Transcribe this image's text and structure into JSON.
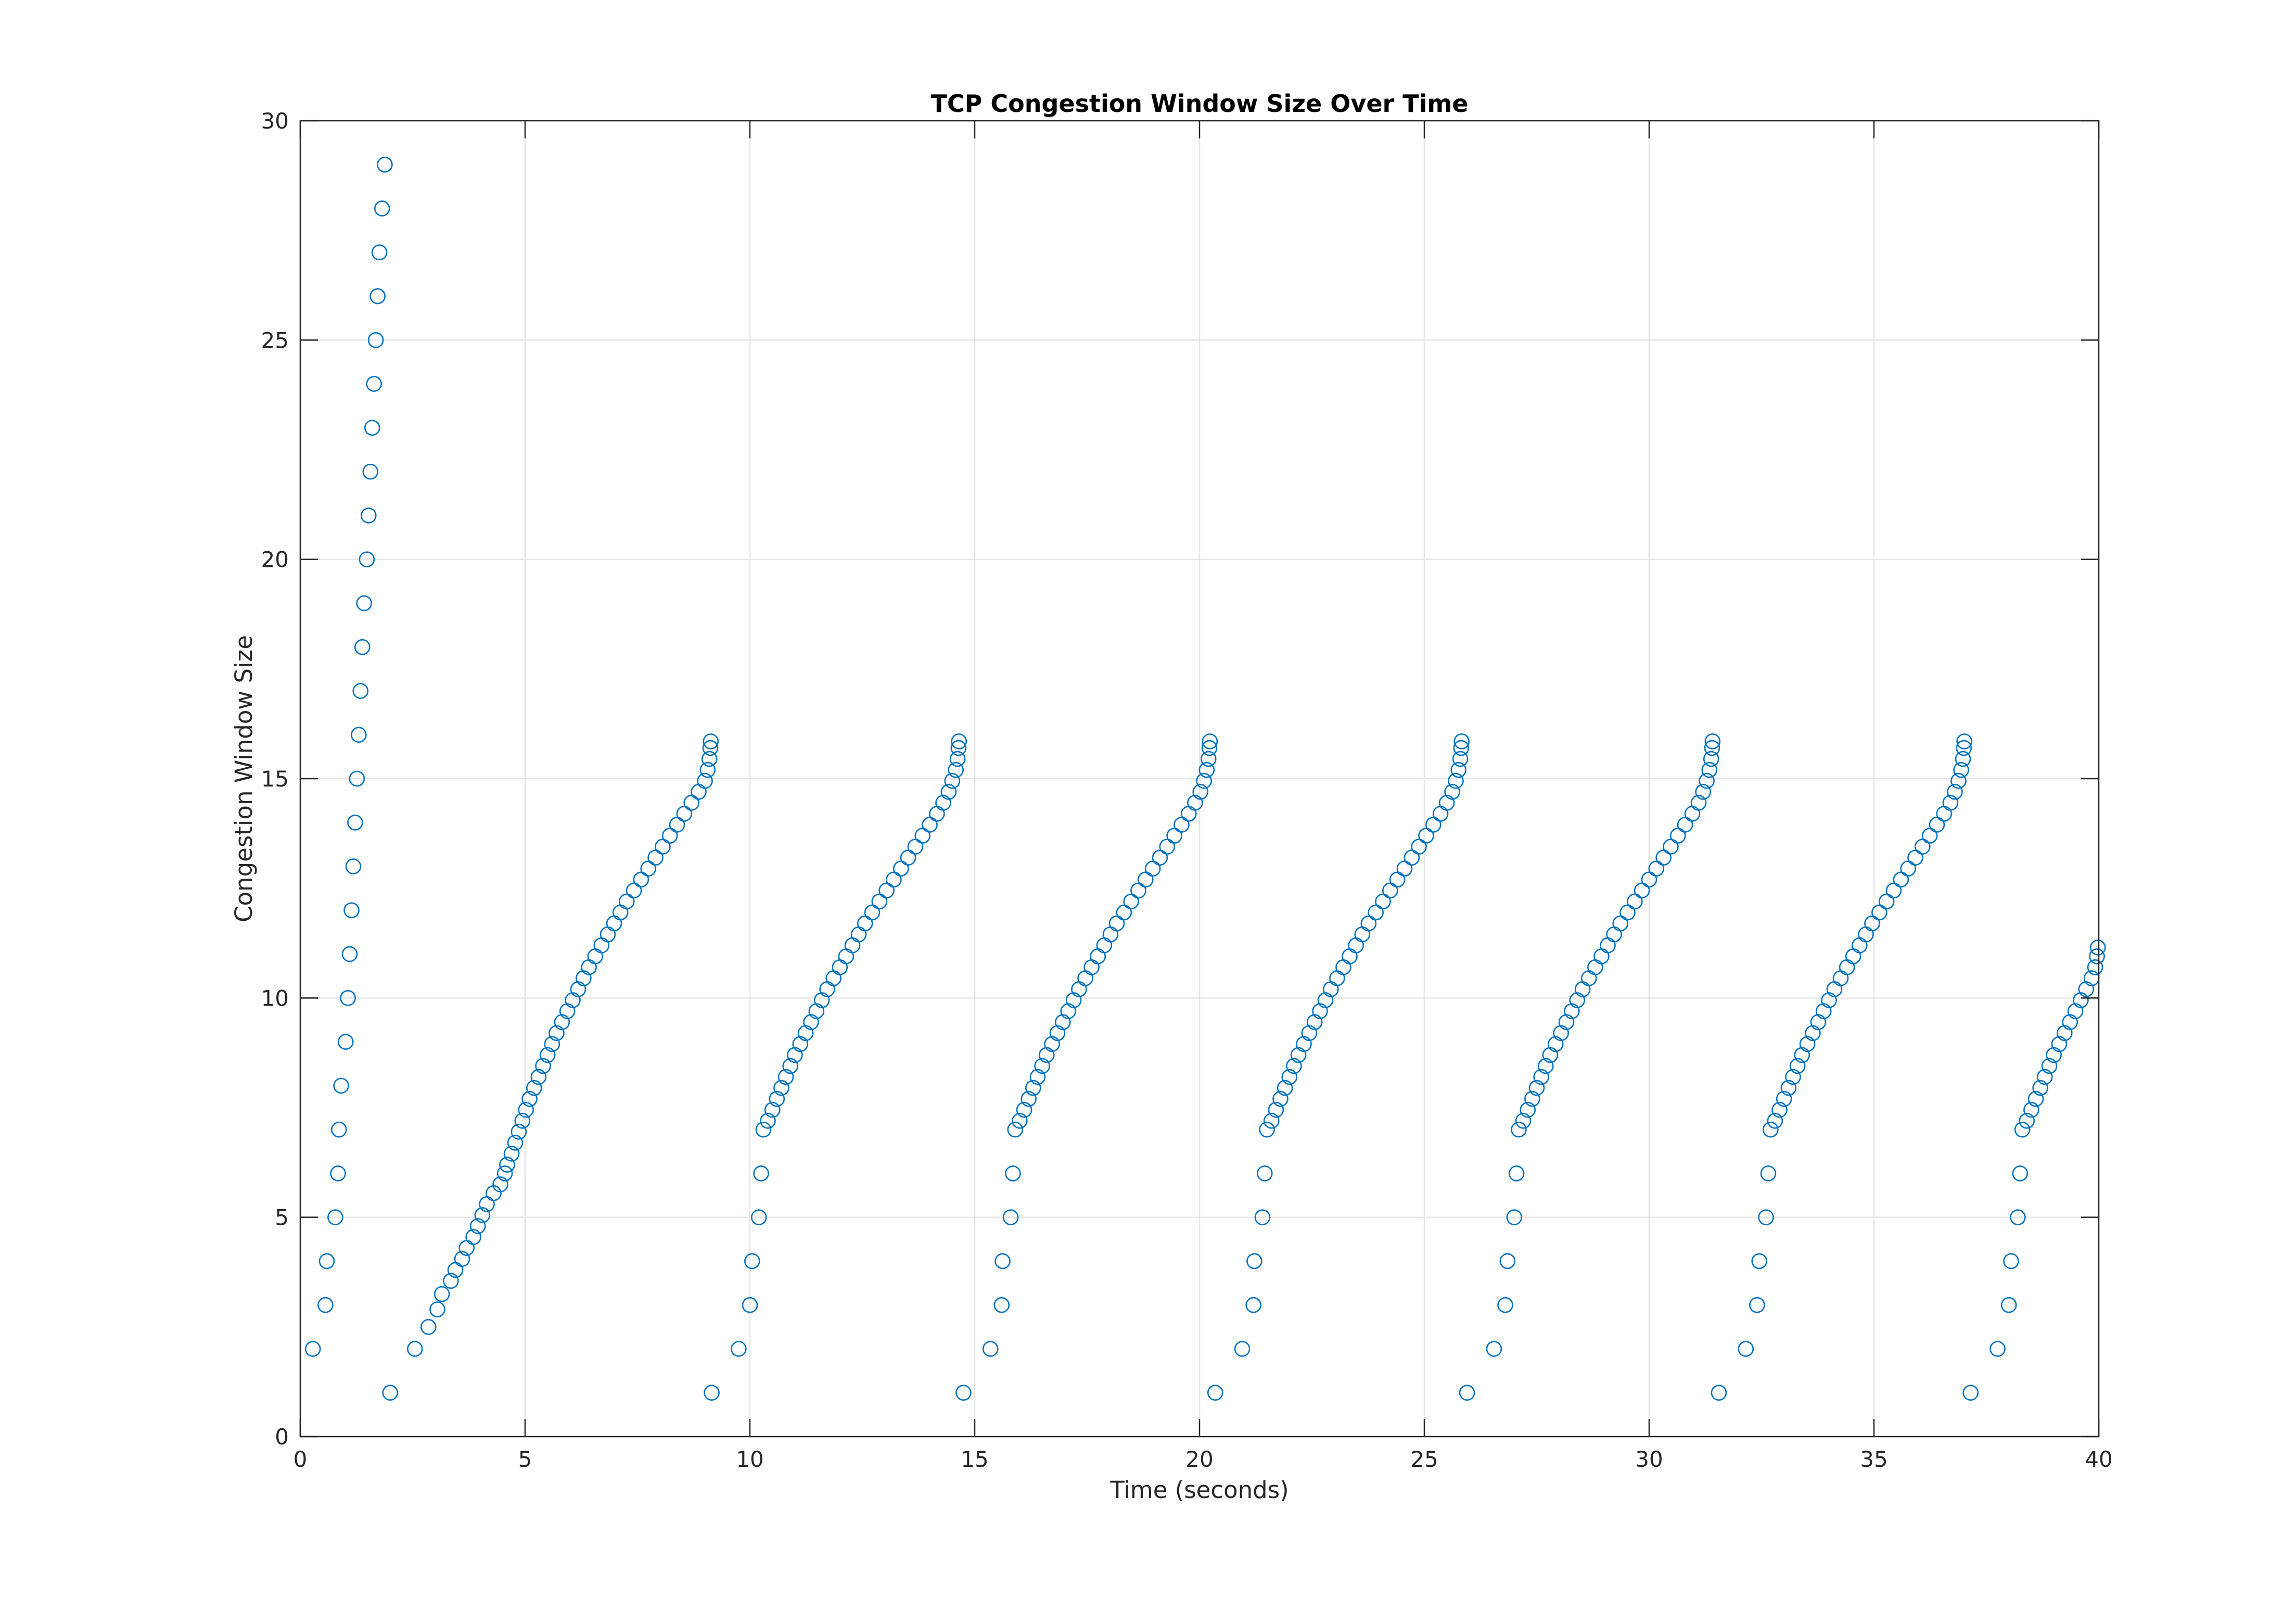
{
  "chart_data": {
    "type": "scatter",
    "title": "TCP Congestion Window Size Over Time",
    "xlabel": "Time (seconds)",
    "ylabel": "Congestion Window Size",
    "xlim": [
      0,
      40
    ],
    "ylim": [
      0,
      30
    ],
    "xticks": [
      0,
      5,
      10,
      15,
      20,
      25,
      30,
      35,
      40
    ],
    "yticks": [
      0,
      5,
      10,
      15,
      20,
      25,
      30
    ],
    "grid": true,
    "legend": "none",
    "marker": "open-circle",
    "marker_color": "#0072BD",
    "points": [
      [
        0.28,
        2
      ],
      [
        0.56,
        3
      ],
      [
        0.59,
        4
      ],
      [
        0.78,
        5
      ],
      [
        0.84,
        6
      ],
      [
        0.86,
        7
      ],
      [
        0.91,
        8
      ],
      [
        1.01,
        9
      ],
      [
        1.06,
        10
      ],
      [
        1.1,
        11
      ],
      [
        1.14,
        12
      ],
      [
        1.18,
        13
      ],
      [
        1.22,
        14
      ],
      [
        1.26,
        15
      ],
      [
        1.3,
        16
      ],
      [
        1.34,
        17
      ],
      [
        1.38,
        18
      ],
      [
        1.42,
        19
      ],
      [
        1.48,
        20
      ],
      [
        1.52,
        21
      ],
      [
        1.56,
        22
      ],
      [
        1.6,
        23
      ],
      [
        1.64,
        24
      ],
      [
        1.68,
        25
      ],
      [
        1.72,
        26
      ],
      [
        1.76,
        27
      ],
      [
        1.82,
        28
      ],
      [
        1.88,
        29
      ],
      [
        2.0,
        1
      ],
      [
        2.55,
        2
      ],
      [
        2.85,
        2.5
      ],
      [
        3.05,
        2.9
      ],
      [
        3.15,
        3.25
      ],
      [
        3.35,
        3.55
      ],
      [
        3.45,
        3.8
      ],
      [
        3.6,
        4.05
      ],
      [
        3.7,
        4.3
      ],
      [
        3.85,
        4.55
      ],
      [
        3.95,
        4.8
      ],
      [
        4.05,
        5.05
      ],
      [
        4.15,
        5.3
      ],
      [
        4.3,
        5.55
      ],
      [
        4.45,
        5.75
      ],
      [
        4.55,
        6.0
      ],
      [
        4.6,
        6.2
      ],
      [
        4.7,
        6.45
      ],
      [
        4.78,
        6.7
      ],
      [
        4.86,
        6.95
      ],
      [
        4.94,
        7.2
      ],
      [
        5.02,
        7.45
      ],
      [
        5.1,
        7.7
      ],
      [
        5.2,
        7.95
      ],
      [
        5.3,
        8.2
      ],
      [
        5.4,
        8.45
      ],
      [
        5.5,
        8.7
      ],
      [
        5.6,
        8.95
      ],
      [
        5.7,
        9.2
      ],
      [
        5.82,
        9.45
      ],
      [
        5.94,
        9.7
      ],
      [
        6.06,
        9.95
      ],
      [
        6.18,
        10.2
      ],
      [
        6.3,
        10.45
      ],
      [
        6.42,
        10.7
      ],
      [
        6.56,
        10.95
      ],
      [
        6.7,
        11.2
      ],
      [
        6.84,
        11.45
      ],
      [
        6.98,
        11.7
      ],
      [
        7.12,
        11.95
      ],
      [
        7.26,
        12.2
      ],
      [
        7.42,
        12.45
      ],
      [
        7.58,
        12.7
      ],
      [
        7.74,
        12.95
      ],
      [
        7.9,
        13.2
      ],
      [
        8.06,
        13.45
      ],
      [
        8.22,
        13.7
      ],
      [
        8.38,
        13.95
      ],
      [
        8.54,
        14.2
      ],
      [
        8.7,
        14.45
      ],
      [
        8.86,
        14.7
      ],
      [
        9.0,
        14.95
      ],
      [
        9.06,
        15.2
      ],
      [
        9.1,
        15.45
      ],
      [
        9.12,
        15.7
      ],
      [
        9.13,
        15.85
      ],
      [
        9.15,
        1
      ],
      [
        9.75,
        2
      ],
      [
        10.0,
        3
      ],
      [
        10.05,
        4
      ],
      [
        10.2,
        5
      ],
      [
        10.25,
        6
      ],
      [
        10.3,
        7
      ],
      [
        10.4,
        7.2
      ],
      [
        10.5,
        7.45
      ],
      [
        10.6,
        7.7
      ],
      [
        10.7,
        7.95
      ],
      [
        10.8,
        8.2
      ],
      [
        10.9,
        8.45
      ],
      [
        11.0,
        8.7
      ],
      [
        11.12,
        8.95
      ],
      [
        11.24,
        9.2
      ],
      [
        11.36,
        9.45
      ],
      [
        11.48,
        9.7
      ],
      [
        11.6,
        9.95
      ],
      [
        11.72,
        10.2
      ],
      [
        11.86,
        10.45
      ],
      [
        12.0,
        10.7
      ],
      [
        12.14,
        10.95
      ],
      [
        12.28,
        11.2
      ],
      [
        12.42,
        11.45
      ],
      [
        12.56,
        11.7
      ],
      [
        12.72,
        11.95
      ],
      [
        12.88,
        12.2
      ],
      [
        13.04,
        12.45
      ],
      [
        13.2,
        12.7
      ],
      [
        13.36,
        12.95
      ],
      [
        13.52,
        13.2
      ],
      [
        13.68,
        13.45
      ],
      [
        13.84,
        13.7
      ],
      [
        14.0,
        13.95
      ],
      [
        14.16,
        14.2
      ],
      [
        14.3,
        14.45
      ],
      [
        14.42,
        14.7
      ],
      [
        14.5,
        14.95
      ],
      [
        14.58,
        15.2
      ],
      [
        14.62,
        15.45
      ],
      [
        14.64,
        15.7
      ],
      [
        14.65,
        15.85
      ],
      [
        14.75,
        1
      ],
      [
        15.35,
        2
      ],
      [
        15.6,
        3
      ],
      [
        15.62,
        4
      ],
      [
        15.8,
        5
      ],
      [
        15.85,
        6
      ],
      [
        15.9,
        7
      ],
      [
        16.0,
        7.2
      ],
      [
        16.1,
        7.45
      ],
      [
        16.2,
        7.7
      ],
      [
        16.3,
        7.95
      ],
      [
        16.4,
        8.2
      ],
      [
        16.5,
        8.45
      ],
      [
        16.6,
        8.7
      ],
      [
        16.72,
        8.95
      ],
      [
        16.84,
        9.2
      ],
      [
        16.96,
        9.45
      ],
      [
        17.08,
        9.7
      ],
      [
        17.2,
        9.95
      ],
      [
        17.32,
        10.2
      ],
      [
        17.46,
        10.45
      ],
      [
        17.6,
        10.7
      ],
      [
        17.74,
        10.95
      ],
      [
        17.88,
        11.2
      ],
      [
        18.02,
        11.45
      ],
      [
        18.16,
        11.7
      ],
      [
        18.32,
        11.95
      ],
      [
        18.48,
        12.2
      ],
      [
        18.64,
        12.45
      ],
      [
        18.8,
        12.7
      ],
      [
        18.96,
        12.95
      ],
      [
        19.12,
        13.2
      ],
      [
        19.28,
        13.45
      ],
      [
        19.44,
        13.7
      ],
      [
        19.6,
        13.95
      ],
      [
        19.76,
        14.2
      ],
      [
        19.9,
        14.45
      ],
      [
        20.02,
        14.7
      ],
      [
        20.1,
        14.95
      ],
      [
        20.16,
        15.2
      ],
      [
        20.2,
        15.45
      ],
      [
        20.22,
        15.7
      ],
      [
        20.23,
        15.85
      ],
      [
        20.35,
        1
      ],
      [
        20.95,
        2
      ],
      [
        21.2,
        3
      ],
      [
        21.22,
        4
      ],
      [
        21.4,
        5
      ],
      [
        21.45,
        6
      ],
      [
        21.5,
        7
      ],
      [
        21.6,
        7.2
      ],
      [
        21.7,
        7.45
      ],
      [
        21.8,
        7.7
      ],
      [
        21.9,
        7.95
      ],
      [
        22.0,
        8.2
      ],
      [
        22.1,
        8.45
      ],
      [
        22.2,
        8.7
      ],
      [
        22.32,
        8.95
      ],
      [
        22.44,
        9.2
      ],
      [
        22.56,
        9.45
      ],
      [
        22.68,
        9.7
      ],
      [
        22.8,
        9.95
      ],
      [
        22.92,
        10.2
      ],
      [
        23.06,
        10.45
      ],
      [
        23.2,
        10.7
      ],
      [
        23.34,
        10.95
      ],
      [
        23.48,
        11.2
      ],
      [
        23.62,
        11.45
      ],
      [
        23.76,
        11.7
      ],
      [
        23.92,
        11.95
      ],
      [
        24.08,
        12.2
      ],
      [
        24.24,
        12.45
      ],
      [
        24.4,
        12.7
      ],
      [
        24.56,
        12.95
      ],
      [
        24.72,
        13.2
      ],
      [
        24.88,
        13.45
      ],
      [
        25.04,
        13.7
      ],
      [
        25.2,
        13.95
      ],
      [
        25.36,
        14.2
      ],
      [
        25.5,
        14.45
      ],
      [
        25.62,
        14.7
      ],
      [
        25.7,
        14.95
      ],
      [
        25.76,
        15.2
      ],
      [
        25.8,
        15.45
      ],
      [
        25.82,
        15.7
      ],
      [
        25.83,
        15.85
      ],
      [
        25.95,
        1
      ],
      [
        26.55,
        2
      ],
      [
        26.8,
        3
      ],
      [
        26.85,
        4
      ],
      [
        27.0,
        5
      ],
      [
        27.05,
        6
      ],
      [
        27.1,
        7
      ],
      [
        27.2,
        7.2
      ],
      [
        27.3,
        7.45
      ],
      [
        27.4,
        7.7
      ],
      [
        27.5,
        7.95
      ],
      [
        27.6,
        8.2
      ],
      [
        27.7,
        8.45
      ],
      [
        27.8,
        8.7
      ],
      [
        27.92,
        8.95
      ],
      [
        28.04,
        9.2
      ],
      [
        28.16,
        9.45
      ],
      [
        28.28,
        9.7
      ],
      [
        28.4,
        9.95
      ],
      [
        28.52,
        10.2
      ],
      [
        28.66,
        10.45
      ],
      [
        28.8,
        10.7
      ],
      [
        28.94,
        10.95
      ],
      [
        29.08,
        11.2
      ],
      [
        29.22,
        11.45
      ],
      [
        29.36,
        11.7
      ],
      [
        29.52,
        11.95
      ],
      [
        29.68,
        12.2
      ],
      [
        29.84,
        12.45
      ],
      [
        30.0,
        12.7
      ],
      [
        30.16,
        12.95
      ],
      [
        30.32,
        13.2
      ],
      [
        30.48,
        13.45
      ],
      [
        30.64,
        13.7
      ],
      [
        30.8,
        13.95
      ],
      [
        30.96,
        14.2
      ],
      [
        31.1,
        14.45
      ],
      [
        31.2,
        14.7
      ],
      [
        31.28,
        14.95
      ],
      [
        31.34,
        15.2
      ],
      [
        31.38,
        15.45
      ],
      [
        31.4,
        15.7
      ],
      [
        31.41,
        15.85
      ],
      [
        31.55,
        1
      ],
      [
        32.15,
        2
      ],
      [
        32.4,
        3
      ],
      [
        32.45,
        4
      ],
      [
        32.6,
        5
      ],
      [
        32.65,
        6
      ],
      [
        32.7,
        7
      ],
      [
        32.8,
        7.2
      ],
      [
        32.9,
        7.45
      ],
      [
        33.0,
        7.7
      ],
      [
        33.1,
        7.95
      ],
      [
        33.2,
        8.2
      ],
      [
        33.3,
        8.45
      ],
      [
        33.4,
        8.7
      ],
      [
        33.52,
        8.95
      ],
      [
        33.64,
        9.2
      ],
      [
        33.76,
        9.45
      ],
      [
        33.88,
        9.7
      ],
      [
        34.0,
        9.95
      ],
      [
        34.12,
        10.2
      ],
      [
        34.26,
        10.45
      ],
      [
        34.4,
        10.7
      ],
      [
        34.54,
        10.95
      ],
      [
        34.68,
        11.2
      ],
      [
        34.82,
        11.45
      ],
      [
        34.96,
        11.7
      ],
      [
        35.12,
        11.95
      ],
      [
        35.28,
        12.2
      ],
      [
        35.44,
        12.45
      ],
      [
        35.6,
        12.7
      ],
      [
        35.76,
        12.95
      ],
      [
        35.92,
        13.2
      ],
      [
        36.08,
        13.45
      ],
      [
        36.24,
        13.7
      ],
      [
        36.4,
        13.95
      ],
      [
        36.56,
        14.2
      ],
      [
        36.7,
        14.45
      ],
      [
        36.8,
        14.7
      ],
      [
        36.88,
        14.95
      ],
      [
        36.94,
        15.2
      ],
      [
        36.98,
        15.45
      ],
      [
        37.0,
        15.7
      ],
      [
        37.01,
        15.85
      ],
      [
        37.15,
        1
      ],
      [
        37.75,
        2
      ],
      [
        38.0,
        3
      ],
      [
        38.05,
        4
      ],
      [
        38.2,
        5
      ],
      [
        38.25,
        6
      ],
      [
        38.3,
        7
      ],
      [
        38.4,
        7.2
      ],
      [
        38.5,
        7.45
      ],
      [
        38.6,
        7.7
      ],
      [
        38.7,
        7.95
      ],
      [
        38.8,
        8.2
      ],
      [
        38.9,
        8.45
      ],
      [
        39.0,
        8.7
      ],
      [
        39.12,
        8.95
      ],
      [
        39.24,
        9.2
      ],
      [
        39.36,
        9.45
      ],
      [
        39.48,
        9.7
      ],
      [
        39.6,
        9.95
      ],
      [
        39.72,
        10.2
      ],
      [
        39.84,
        10.45
      ],
      [
        39.92,
        10.7
      ],
      [
        39.96,
        10.95
      ],
      [
        39.98,
        11.15
      ]
    ]
  }
}
